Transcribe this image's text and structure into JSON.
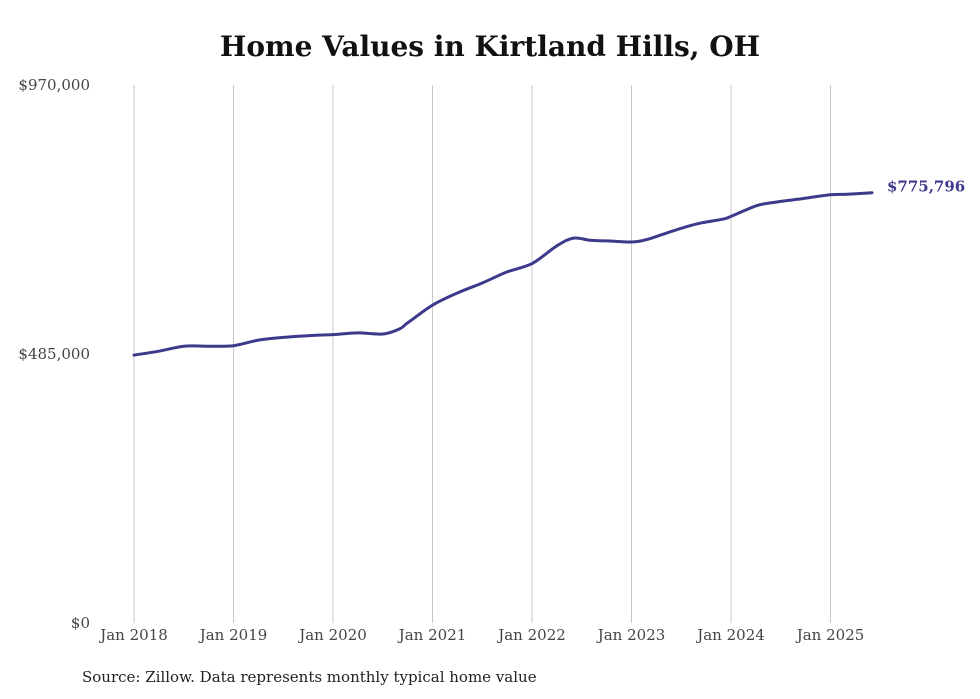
{
  "title": "Home Values in Kirtland Hills, OH",
  "source": "Source: Zillow. Data represents monthly typical home value",
  "colors": {
    "line": "#3d3a8c",
    "grid": "#c8c8c8",
    "text": "#444444"
  },
  "chart_data": {
    "type": "line",
    "title": "Home Values in Kirtland Hills, OH",
    "xlabel": "",
    "ylabel": "",
    "ylim": [
      0,
      970000
    ],
    "y_ticks": [
      0,
      485000,
      970000
    ],
    "y_tick_labels": [
      "$0",
      "$485,000",
      "$970,000"
    ],
    "x_ticks": [
      "2018-01",
      "2019-01",
      "2020-01",
      "2021-01",
      "2022-01",
      "2023-01",
      "2024-01",
      "2025-01"
    ],
    "x_tick_labels": [
      "Jan 2018",
      "Jan 2019",
      "Jan 2020",
      "Jan 2021",
      "Jan 2022",
      "Jan 2023",
      "Jan 2024",
      "Jan 2025"
    ],
    "grid": "vertical",
    "end_label": "$775,796",
    "series": [
      {
        "x": [
          "2018-01",
          "2018-04",
          "2018-07",
          "2018-10",
          "2019-01",
          "2019-04",
          "2019-07",
          "2019-10",
          "2020-01",
          "2020-04",
          "2020-07",
          "2020-09",
          "2020-10",
          "2021-01",
          "2021-04",
          "2021-07",
          "2021-10",
          "2022-01",
          "2022-04",
          "2022-06",
          "2022-08",
          "2022-10",
          "2023-01",
          "2023-03",
          "2023-06",
          "2023-09",
          "2023-12",
          "2024-01",
          "2024-04",
          "2024-06",
          "2024-09",
          "2025-01",
          "2025-03",
          "2025-06"
        ],
        "values": [
          483000,
          490000,
          499000,
          499000,
          500000,
          510000,
          515000,
          518000,
          520000,
          523000,
          521000,
          530000,
          541000,
          573000,
          595000,
          613000,
          633000,
          648000,
          680000,
          694000,
          690000,
          689000,
          687000,
          692000,
          707000,
          720000,
          728000,
          733000,
          752000,
          758000,
          764000,
          772000,
          773000,
          775796
        ]
      }
    ]
  }
}
